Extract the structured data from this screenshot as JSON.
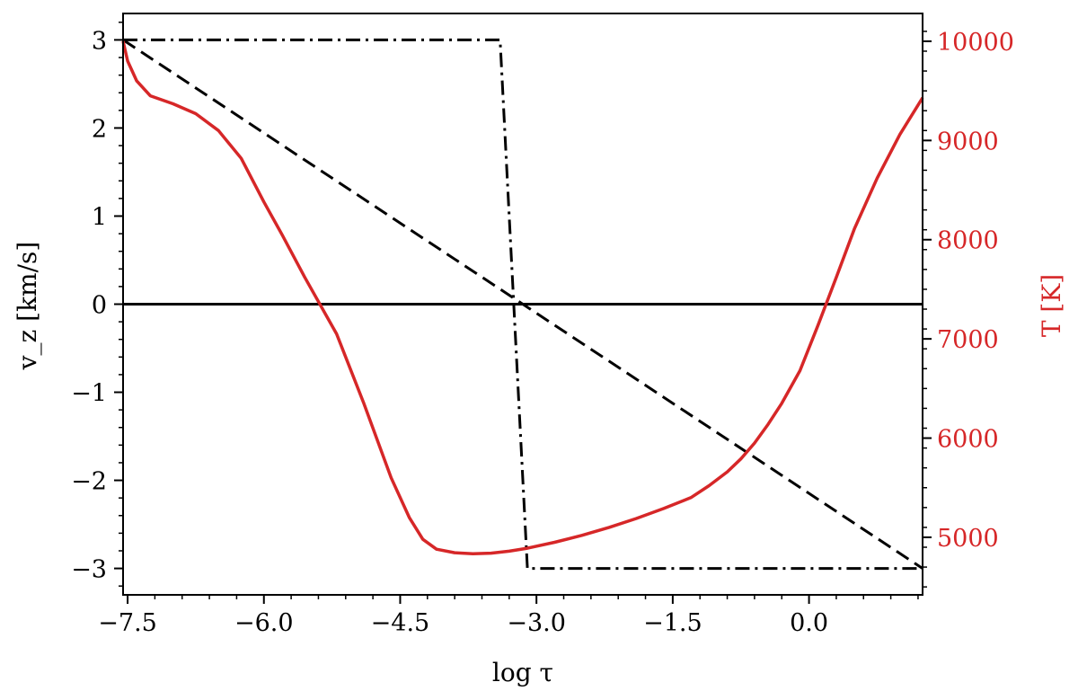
{
  "chart_data": {
    "type": "line",
    "xlabel": "log τ",
    "ylabel_left": "v_z [km/s]",
    "ylabel_right": "T [K]",
    "xlim": [
      -7.55,
      1.25
    ],
    "ylim_left": [
      -3.3,
      3.3
    ],
    "ylim_right": [
      4420,
      10280
    ],
    "x_ticks": [
      -7.5,
      -6.0,
      -4.5,
      -3.0,
      -1.5,
      0.0
    ],
    "x_tick_labels": [
      "−7.5",
      "−6.0",
      "−4.5",
      "−3.0",
      "−1.5",
      "0.0"
    ],
    "y_left_ticks": [
      -3,
      -2,
      -1,
      0,
      1,
      2,
      3
    ],
    "y_left_tick_labels": [
      "−3",
      "−2",
      "−1",
      "0",
      "1",
      "2",
      "3"
    ],
    "y_right_ticks": [
      5000,
      6000,
      7000,
      8000,
      9000,
      10000
    ],
    "y_right_tick_labels": [
      "5000",
      "6000",
      "7000",
      "8000",
      "9000",
      "10000"
    ],
    "grid": false,
    "colors": {
      "temperature": "#d62728",
      "velocity": "#000000"
    },
    "series": [
      {
        "axis": "left",
        "style": "solid",
        "x": [
          -7.55,
          1.25
        ],
        "y": [
          0,
          0
        ]
      },
      {
        "axis": "left",
        "style": "dashed",
        "x": [
          -7.55,
          1.25
        ],
        "y": [
          3,
          -3
        ]
      },
      {
        "axis": "left",
        "style": "dashdot",
        "x": [
          -7.55,
          -3.4,
          -3.1,
          1.25
        ],
        "y": [
          3,
          3,
          -3,
          -3
        ]
      },
      {
        "axis": "right",
        "style": "solid",
        "x": [
          -7.55,
          -7.5,
          -7.4,
          -7.25,
          -7.0,
          -6.75,
          -6.5,
          -6.25,
          -6.0,
          -5.8,
          -5.55,
          -5.2,
          -4.9,
          -4.6,
          -4.4,
          -4.25,
          -4.1,
          -3.9,
          -3.7,
          -3.5,
          -3.3,
          -3.1,
          -2.8,
          -2.5,
          -2.2,
          -1.9,
          -1.6,
          -1.3,
          -1.1,
          -0.9,
          -0.75,
          -0.6,
          -0.45,
          -0.3,
          -0.1,
          0.1,
          0.3,
          0.5,
          0.75,
          1.0,
          1.25
        ],
        "y": [
          10000,
          9800,
          9600,
          9450,
          9370,
          9270,
          9100,
          8820,
          8380,
          8050,
          7620,
          7050,
          6350,
          5600,
          5200,
          4980,
          4880,
          4845,
          4835,
          4840,
          4860,
          4890,
          4950,
          5020,
          5100,
          5190,
          5290,
          5400,
          5520,
          5660,
          5790,
          5950,
          6140,
          6350,
          6680,
          7140,
          7620,
          8110,
          8620,
          9060,
          9430
        ]
      }
    ]
  }
}
